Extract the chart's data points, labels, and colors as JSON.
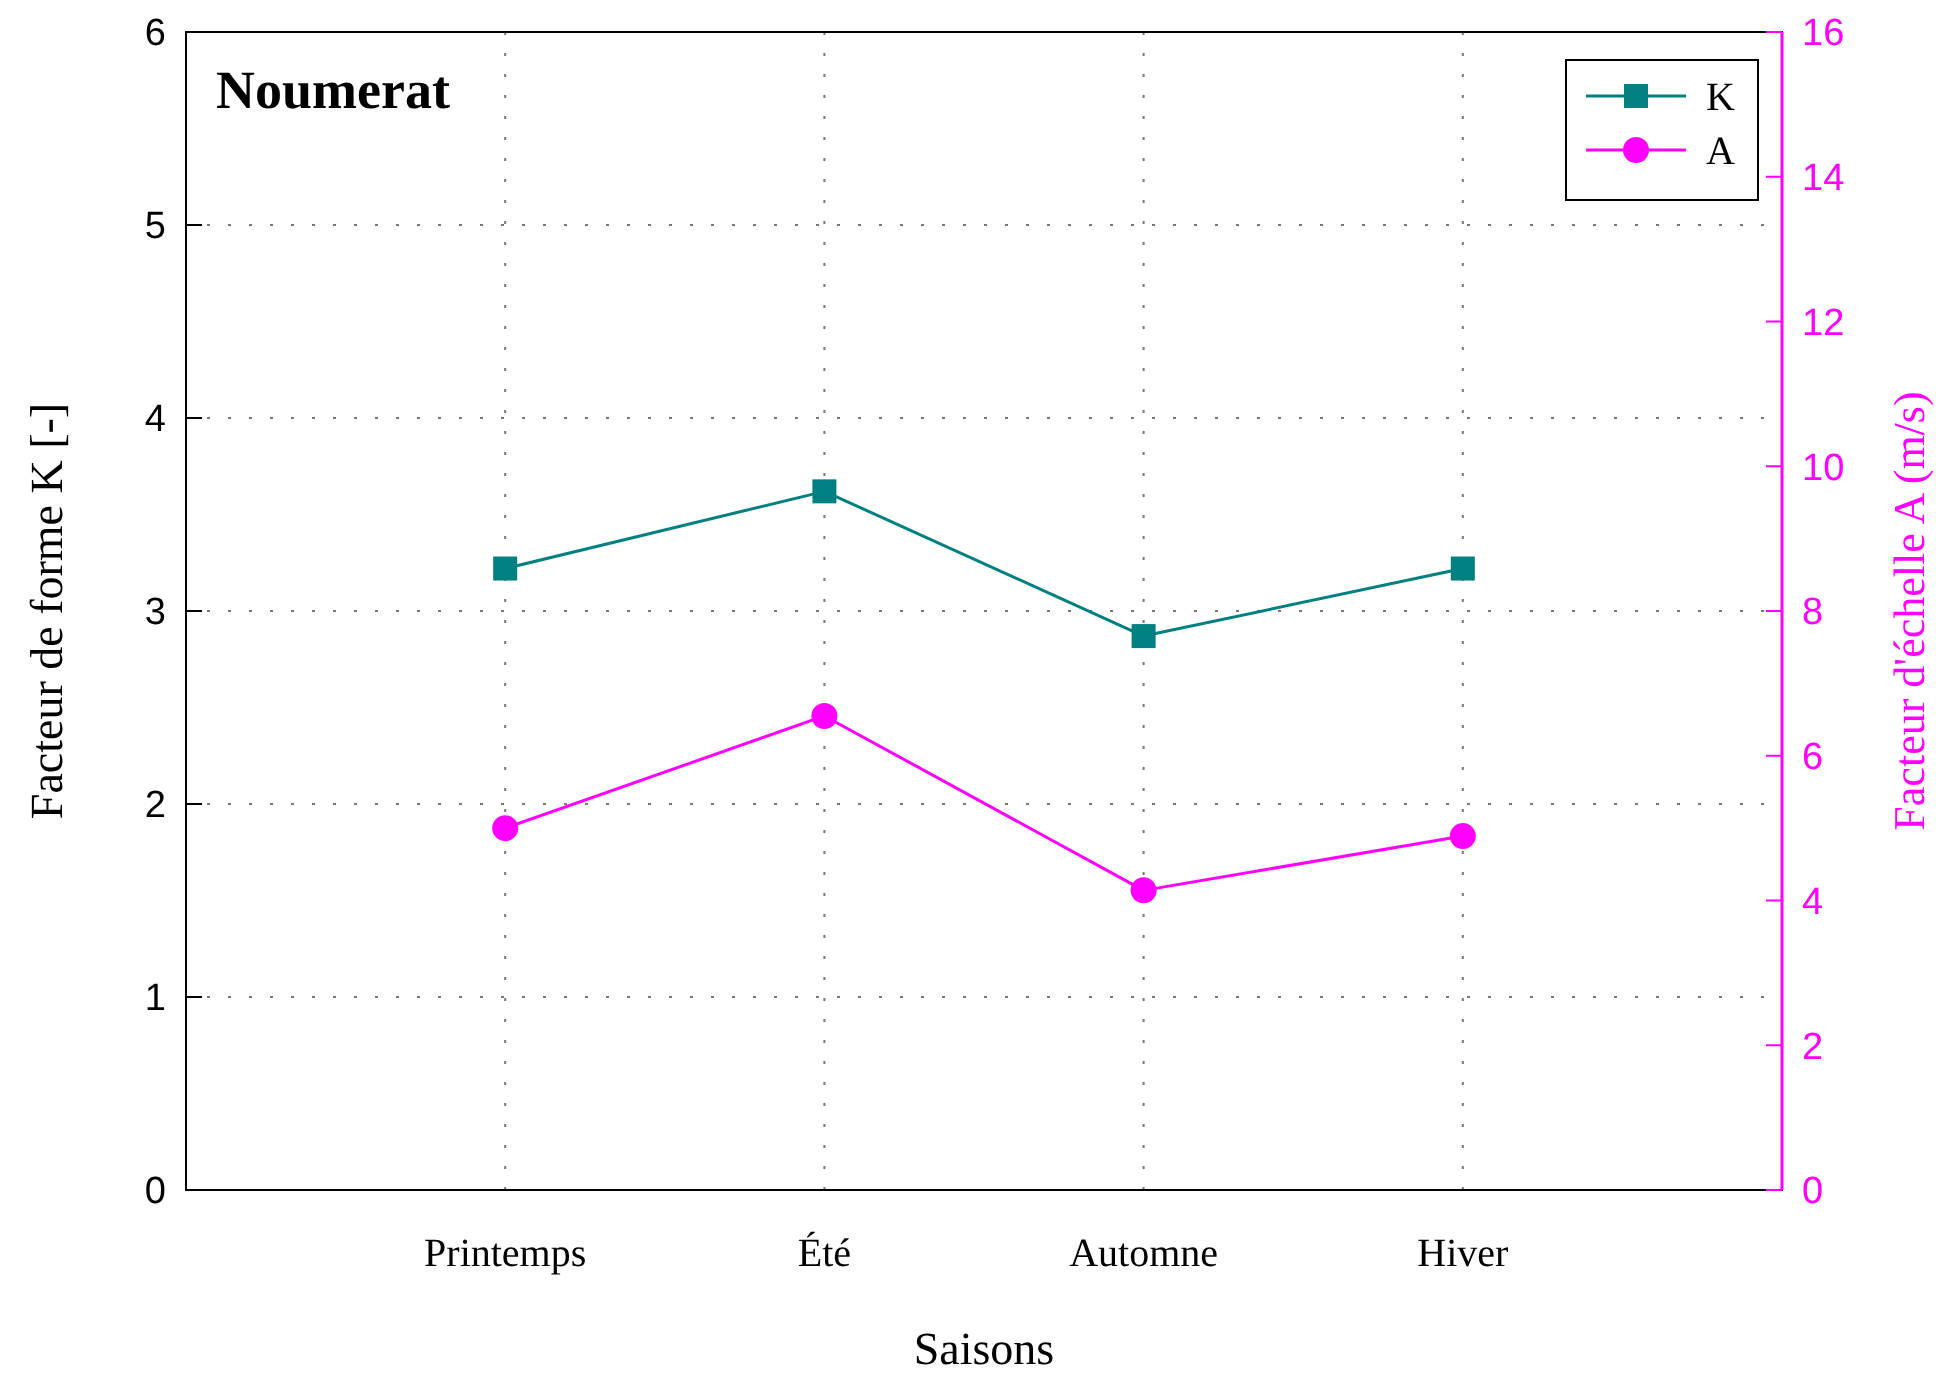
{
  "chart_data": {
    "type": "line",
    "title": "Noumerat",
    "xlabel": "Saisons",
    "ylabel": "Facteur de forme K [-]",
    "y2label": "Facteur d'échelle A (m/s)",
    "categories": [
      "Printemps",
      "Été",
      "Automne",
      "Hiver"
    ],
    "series": [
      {
        "name": "K",
        "color": "#008080",
        "values": [
          3.22,
          3.62,
          2.87,
          3.22
        ],
        "marker": "square"
      },
      {
        "name": "A",
        "color": "#ff00ff",
        "values": [
          5.0,
          6.55,
          4.14,
          4.89
        ],
        "marker": "circle",
        "axis": "y2"
      }
    ],
    "ylim": [
      0,
      6
    ],
    "yticks": [
      0,
      1,
      2,
      3,
      4,
      5,
      6
    ],
    "y2lim": [
      0,
      16
    ],
    "y2ticks": [
      0,
      2,
      4,
      6,
      8,
      10,
      12,
      14,
      16
    ],
    "grid": true,
    "legend": "top right",
    "line_style": "solid"
  }
}
